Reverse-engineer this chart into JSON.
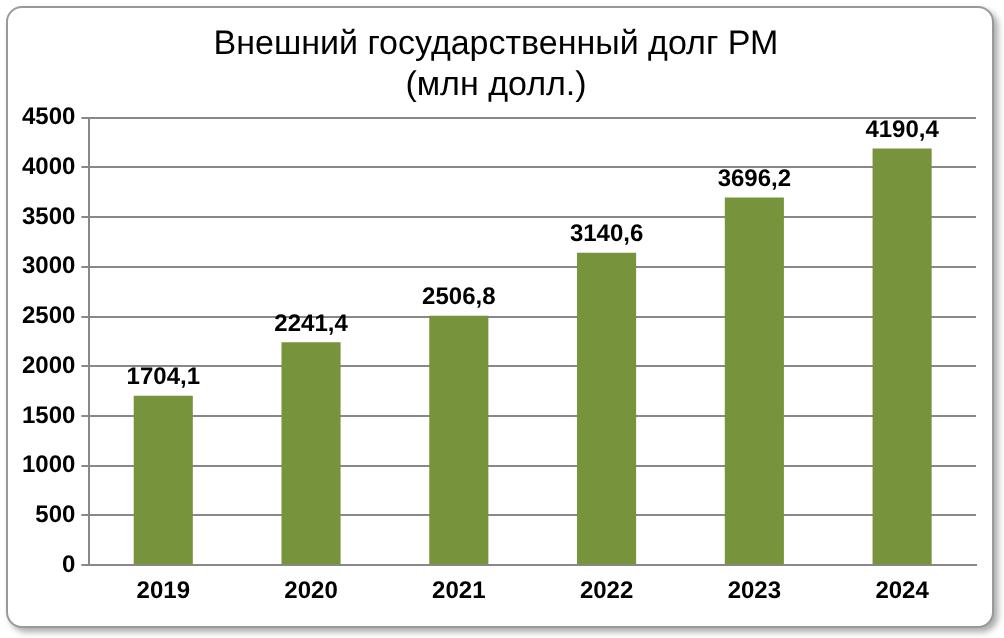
{
  "chart_data": {
    "type": "bar",
    "title": "Внешний государственный долг РМ",
    "subtitle": "(млн долл.)",
    "categories": [
      "2019",
      "2020",
      "2021",
      "2022",
      "2023",
      "2024"
    ],
    "values": [
      1704.1,
      2241.4,
      2506.8,
      3140.6,
      3696.2,
      4190.4
    ],
    "value_labels": [
      "1704,1",
      "2241,4",
      "2506,8",
      "3140,6",
      "3696,2",
      "4190,4"
    ],
    "color": "#77933c",
    "ylim": [
      0,
      4500
    ],
    "yticks": [
      0,
      500,
      1000,
      1500,
      2000,
      2500,
      3000,
      3500,
      4000,
      4500
    ],
    "grid": "y",
    "legend": false
  }
}
